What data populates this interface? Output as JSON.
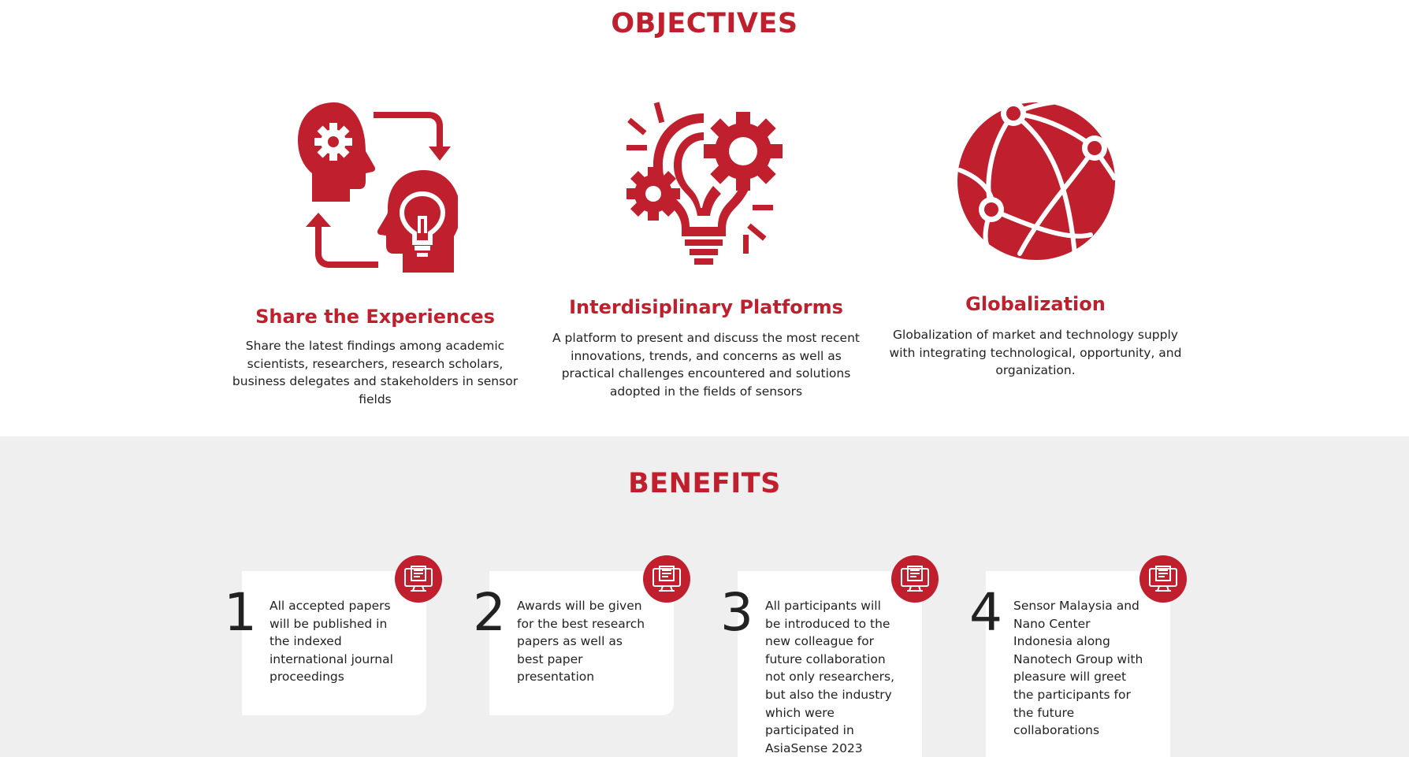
{
  "colors": {
    "accent": "#c01f2e",
    "text": "#222222",
    "benefits_bg": "#efefef"
  },
  "objectives": {
    "title": "OBJECTIVES",
    "items": [
      {
        "icon": "head-exchange-icon",
        "title": "Share the Experiences",
        "description": "Share the latest findings among academic scientists, researchers, research scholars, business delegates and stakeholders in sensor fields"
      },
      {
        "icon": "lightbulb-gears-icon",
        "title": "Interdisiplinary Platforms",
        "description": "A platform to present and discuss the most recent innovations, trends, and concerns as well as practical challenges encountered and solutions adopted in the fields of sensors"
      },
      {
        "icon": "globe-network-icon",
        "title": "Globalization",
        "description": "Globalization of market and technology supply with integrating technological, opportunity, and organization."
      }
    ]
  },
  "benefits": {
    "title": "BENEFITS",
    "items": [
      {
        "number": "1",
        "icon": "monitor-document-icon",
        "text": "All accepted papers will be published in the indexed international journal proceedings"
      },
      {
        "number": "2",
        "icon": "monitor-document-icon",
        "text": "Awards will be given for the best research papers as well as best paper presentation"
      },
      {
        "number": "3",
        "icon": "monitor-document-icon",
        "text": "All participants will be introduced to the new colleague for future collaboration not only researchers, but also the industry which were participated in AsiaSense 2023"
      },
      {
        "number": "4",
        "icon": "monitor-document-icon",
        "text": "Sensor Malaysia and Nano Center Indonesia along Nanotech Group with pleasure will greet the participants for the future collaborations"
      }
    ]
  }
}
